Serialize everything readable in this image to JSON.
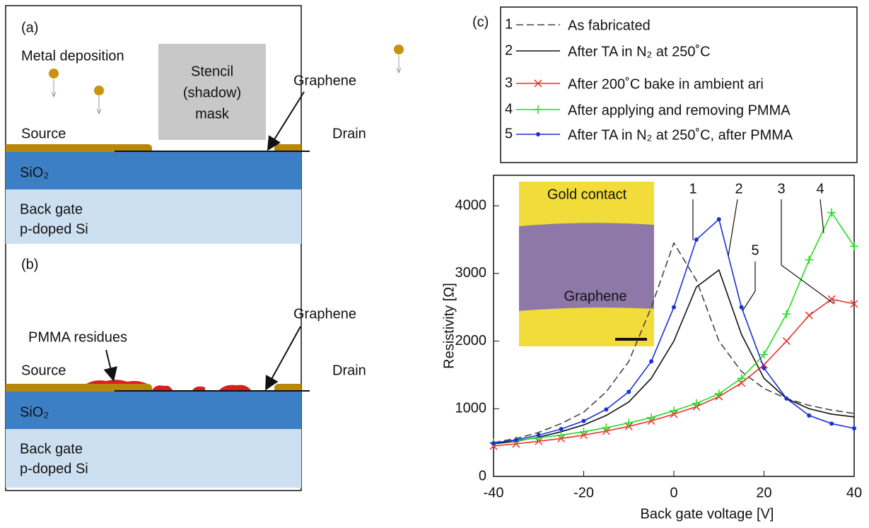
{
  "panel_a": {
    "label": "(a)",
    "metal": "Metal deposition",
    "mask": [
      "Stencil",
      "(shadow)",
      "mask"
    ],
    "graphene": "Graphene",
    "source": "Source",
    "drain": "Drain",
    "oxide": "SiO₂",
    "gate": [
      "Back gate",
      "p-doped Si"
    ]
  },
  "panel_b": {
    "label": "(b)",
    "residues": "PMMA residues",
    "graphene": "Graphene",
    "source": "Source",
    "drain": "Drain",
    "oxide": "SiO₂",
    "gate": [
      "Back gate",
      "p-doped Si"
    ]
  },
  "chart_data": {
    "type": "line",
    "panel_label": "(c)",
    "xlabel": "Back gate voltage [V]",
    "ylabel": "Resistivity [Ω]",
    "xlim": [
      -40,
      40
    ],
    "ylim": [
      0,
      4450
    ],
    "xticks": [
      -40,
      -20,
      0,
      20,
      40
    ],
    "yticks": [
      0,
      1000,
      2000,
      3000,
      4000
    ],
    "x": [
      -40,
      -35,
      -30,
      -25,
      -20,
      -15,
      -10,
      -5,
      0,
      5,
      10,
      15,
      20,
      25,
      30,
      35,
      40
    ],
    "series": [
      {
        "id": "1",
        "name": "As fabricated",
        "color": "#444444",
        "dash": true,
        "marker": "none",
        "values": [
          500,
          560,
          650,
          780,
          950,
          1250,
          1700,
          2500,
          3450,
          2900,
          2000,
          1550,
          1300,
          1150,
          1050,
          980,
          930
        ]
      },
      {
        "id": "2",
        "name": "After TA in N₂ at 250˚C",
        "color": "#111111",
        "dash": false,
        "marker": "none",
        "values": [
          480,
          520,
          580,
          660,
          760,
          900,
          1100,
          1450,
          2000,
          2800,
          3050,
          2100,
          1450,
          1150,
          1000,
          920,
          880
        ]
      },
      {
        "id": "3",
        "name": "After 200˚C bake in ambient ari",
        "color": "#e8302a",
        "dash": false,
        "marker": "x",
        "values": [
          450,
          480,
          520,
          560,
          610,
          670,
          740,
          820,
          920,
          1030,
          1180,
          1380,
          1650,
          2000,
          2380,
          2620,
          2550
        ]
      },
      {
        "id": "4",
        "name": "After applying and removing PMMA",
        "color": "#22dd22",
        "dash": false,
        "marker": "+",
        "values": [
          500,
          530,
          570,
          610,
          660,
          720,
          790,
          870,
          970,
          1080,
          1220,
          1450,
          1800,
          2400,
          3200,
          3900,
          3400
        ]
      },
      {
        "id": "5",
        "name": "After TA in N₂ at 250˚C, after PMMA",
        "color": "#1a2fd8",
        "dash": false,
        "marker": "dot",
        "values": [
          490,
          540,
          610,
          700,
          820,
          990,
          1250,
          1700,
          2500,
          3500,
          3800,
          2500,
          1600,
          1150,
          900,
          780,
          710
        ]
      }
    ],
    "annotations": [
      "1",
      "2",
      "3",
      "4",
      "5"
    ],
    "inset": {
      "top": "Gold contact",
      "middle": "Graphene"
    }
  }
}
